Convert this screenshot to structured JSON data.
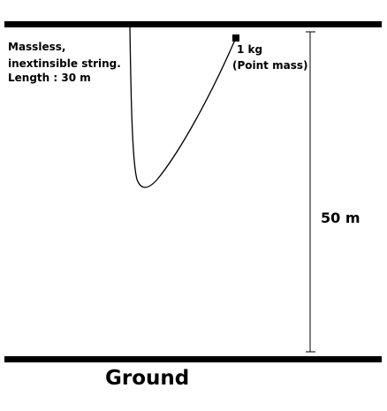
{
  "string_note": [
    "Massless,",
    "inextinsible string.",
    "Length : 30 m"
  ],
  "mass": [
    "1 kg",
    "(Point mass)"
  ],
  "height": "50 m",
  "ground": "Ground"
}
